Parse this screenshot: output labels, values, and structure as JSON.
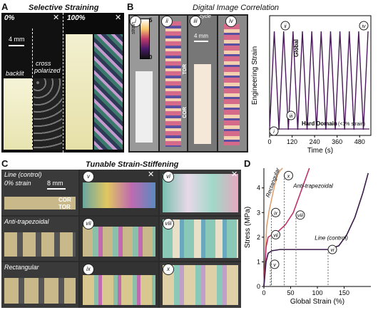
{
  "panelA": {
    "label": "A",
    "title": "Selective Straining",
    "pct0": "0%",
    "pct100": "100%",
    "scale": "4 mm",
    "backlit": "backlit",
    "cross": "cross",
    "polarized": "polarized",
    "cross_icon": "cross-arrows-icon"
  },
  "panelB": {
    "label": "B",
    "title": "Digital Image Correlation",
    "i": "i",
    "ii": "ii",
    "iii": "iii",
    "iv": "iv",
    "strain": "strain",
    "s5": "5",
    "s0": "0",
    "tor": "TOR",
    "cor": "COR",
    "scale": "4 mm",
    "cycle": "cycle"
  },
  "panelC": {
    "label": "C",
    "title": "Tunable Strain-Stiffening",
    "line": "Line (control)",
    "strain0": "0% strain",
    "scale": "8 mm",
    "cor": "COR",
    "tor": "TOR",
    "anti": "Anti-trapezoidal",
    "rect": "Rectangular",
    "v": "v",
    "vi": "vi",
    "vii": "vii",
    "viii": "viii",
    "ix": "ix",
    "x": "x"
  },
  "panelD": {
    "label": "D"
  },
  "chart_data": [
    {
      "type": "line",
      "title": "",
      "xlabel": "Time (s)",
      "ylabel": "Engineering Strain",
      "xticks": [
        "0",
        "120",
        "240",
        "360",
        "480"
      ],
      "xlim": [
        0,
        540
      ],
      "annotations": {
        "global": "Global",
        "hard": "Hard Domain",
        "hard_note": "(<1% strain)",
        "i": "i",
        "ii": "ii",
        "iii": "iii",
        "iv": "iv"
      },
      "series": [
        {
          "name": "Global",
          "x": [
            0,
            25,
            50,
            75,
            100,
            125,
            150,
            175,
            200,
            225,
            250,
            275,
            300,
            325,
            350,
            375,
            400,
            425,
            450,
            475,
            500,
            525
          ],
          "y": [
            0,
            1,
            0,
            1,
            0,
            1,
            0,
            1,
            0,
            1,
            0,
            1,
            0,
            1,
            0,
            1,
            0,
            1,
            0,
            1,
            0,
            1
          ]
        }
      ]
    },
    {
      "type": "line",
      "title": "",
      "xlabel": "Global Strain (%)",
      "ylabel": "Stress (MPa)",
      "xticks": [
        "0",
        "50",
        "100",
        "150"
      ],
      "yticks": [
        "0",
        "1",
        "2",
        "3",
        "4"
      ],
      "xlim": [
        0,
        200
      ],
      "ylim": [
        0,
        4.8
      ],
      "annotations": {
        "v": "v",
        "vi": "vi",
        "vii": "vii",
        "viii": "viii",
        "ix": "ix",
        "x": "x"
      },
      "series": [
        {
          "name": "Rectangular",
          "x": [
            0,
            5,
            10,
            15,
            20,
            25,
            30,
            35
          ],
          "y": [
            0,
            2.4,
            3.1,
            3.6,
            4.1,
            4.5,
            4.7,
            4.8
          ]
        },
        {
          "name": "Anti-trapezoidal",
          "x": [
            0,
            4,
            8,
            15,
            25,
            40,
            55,
            65,
            75,
            85
          ],
          "y": [
            0,
            1.6,
            2.0,
            2.1,
            2.2,
            2.5,
            3.0,
            3.6,
            4.2,
            4.8
          ]
        },
        {
          "name": "Line (control)",
          "x": [
            0,
            4,
            8,
            15,
            30,
            60,
            90,
            120,
            140,
            155,
            170,
            185,
            195
          ],
          "y": [
            0,
            1.0,
            1.35,
            1.45,
            1.5,
            1.5,
            1.5,
            1.5,
            1.65,
            2.1,
            2.8,
            3.8,
            4.6
          ]
        }
      ]
    }
  ]
}
